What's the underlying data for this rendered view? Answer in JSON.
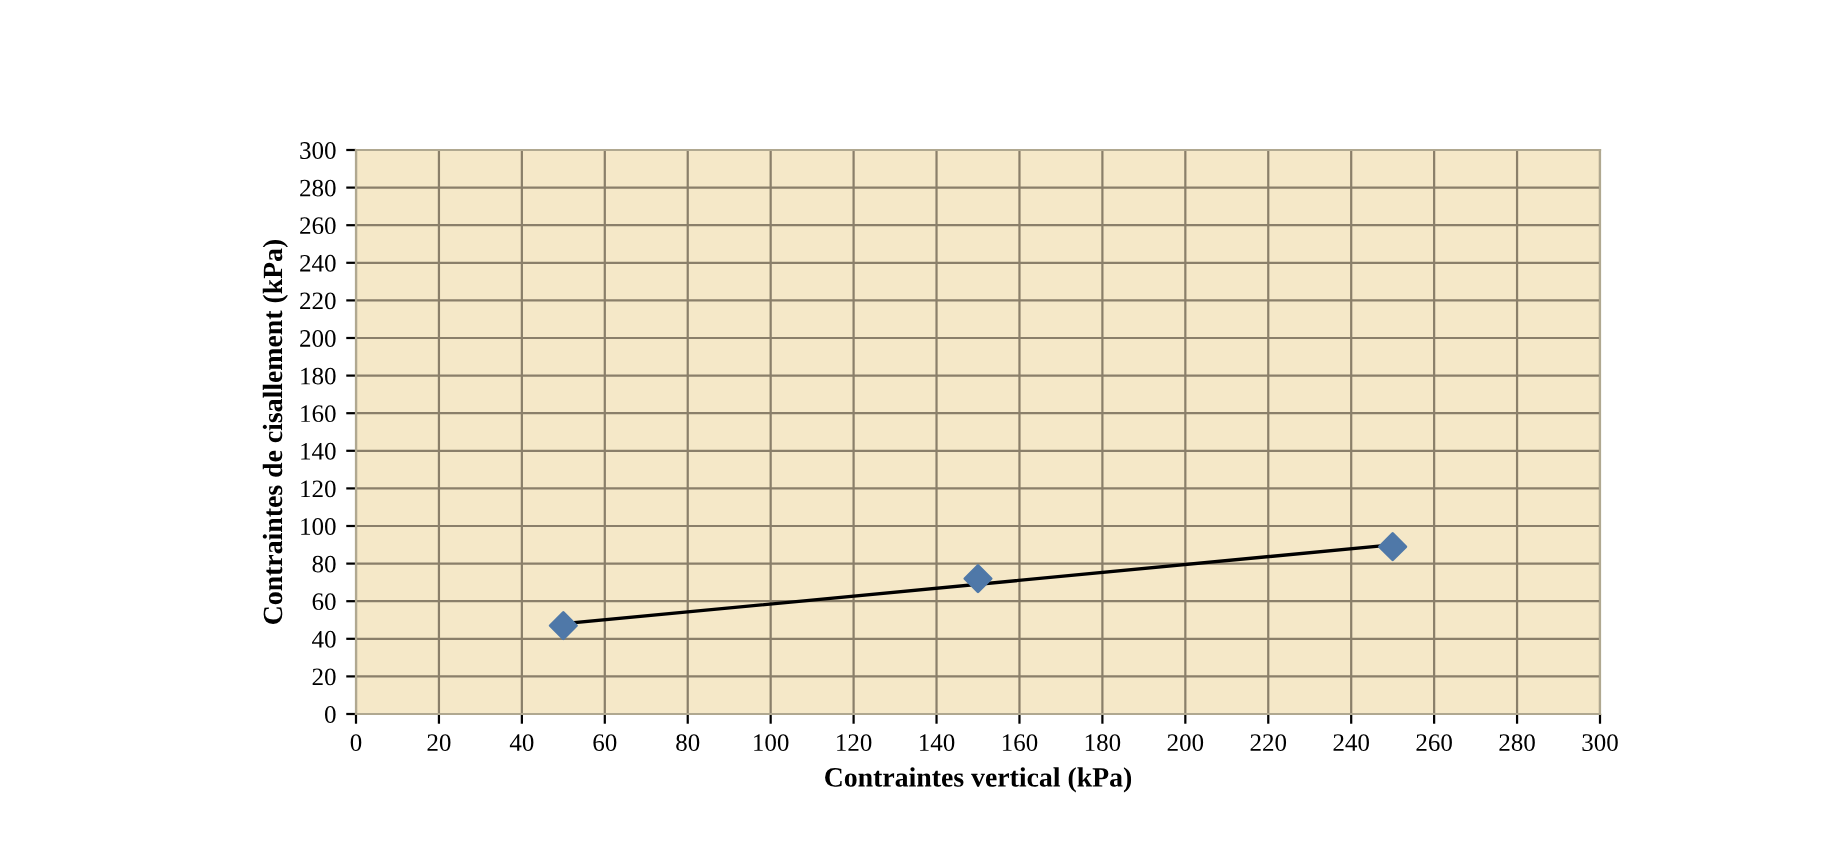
{
  "chart_data": {
    "type": "scatter",
    "xlabel": "Contraintes vertical (kPa)",
    "ylabel": "Contraintes de cisallement (kPa)",
    "series": [
      {
        "x": [
          50,
          150,
          250
        ],
        "values": [
          47,
          72,
          89
        ],
        "color": "#4f78a8",
        "marker": "diamond"
      },
      {
        "type": "line",
        "x": [
          50,
          250
        ],
        "values": [
          48,
          90
        ],
        "color": "#000000",
        "marker": "none",
        "line_style": "solid"
      }
    ],
    "xlim": [
      0,
      300
    ],
    "ylim": [
      0,
      300
    ],
    "xticks": [
      0,
      20,
      40,
      60,
      80,
      100,
      120,
      140,
      160,
      180,
      200,
      220,
      240,
      260,
      280,
      300
    ],
    "yticks": [
      0,
      20,
      40,
      60,
      80,
      100,
      120,
      140,
      160,
      180,
      200,
      220,
      240,
      260,
      280,
      300
    ],
    "grid": true,
    "legend": false
  }
}
